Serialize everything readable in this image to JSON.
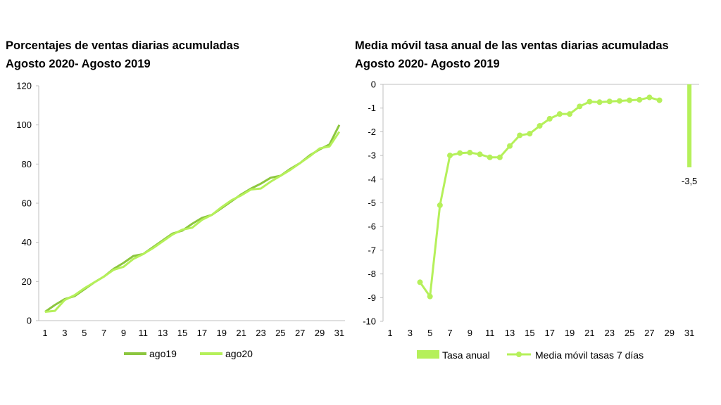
{
  "colors": {
    "ago19": "#8cc63f",
    "ago20": "#b5f05a",
    "tasa": "#b5f05a",
    "media": "#b5f05a",
    "axis": "#bfbfbf"
  },
  "chart_data": [
    {
      "type": "line",
      "title": "Porcentajes  de ventas diarias acumuladas",
      "subtitle": "Agosto 2020- Agosto 2019",
      "xlabel": "",
      "ylabel": "",
      "ylim": [
        0,
        120
      ],
      "yticks": [
        "0",
        "20",
        "40",
        "60",
        "80",
        "100",
        "120"
      ],
      "xticks": [
        "1",
        "3",
        "5",
        "7",
        "9",
        "11",
        "13",
        "15",
        "17",
        "19",
        "21",
        "23",
        "25",
        "27",
        "29",
        "31"
      ],
      "legend": "bottom",
      "x": [
        1,
        2,
        3,
        4,
        5,
        6,
        7,
        8,
        9,
        10,
        11,
        12,
        13,
        14,
        15,
        16,
        17,
        18,
        19,
        20,
        21,
        22,
        23,
        24,
        25,
        26,
        27,
        28,
        29,
        30,
        31
      ],
      "series": [
        {
          "name": "ago19",
          "values": [
            4.5,
            8,
            11,
            12.5,
            16,
            19.5,
            22.5,
            26.5,
            29.5,
            33,
            34,
            37.5,
            41,
            44.5,
            46,
            49.5,
            52.5,
            54,
            57.5,
            61,
            64.5,
            67.5,
            70,
            73,
            74,
            77.5,
            80.5,
            84.5,
            87.5,
            90,
            100
          ]
        },
        {
          "name": "ago20",
          "values": [
            4.5,
            5,
            10.5,
            13,
            16.5,
            19.5,
            22.5,
            26,
            27.5,
            31.5,
            34,
            37,
            40.5,
            44,
            46.5,
            47.5,
            51.5,
            54,
            58,
            61.5,
            64,
            67,
            67.5,
            71,
            74,
            77,
            80.5,
            84,
            88,
            89,
            96.5
          ]
        }
      ]
    },
    {
      "type": "line",
      "title": "Media móvil tasa anual de las ventas diarias acumuladas",
      "subtitle": "Agosto 2020- Agosto 2019",
      "xlabel": "",
      "ylabel": "",
      "ylim": [
        -10,
        0
      ],
      "yticks": [
        "0",
        "-1",
        "-2",
        "-3",
        "-4",
        "-5",
        "-6",
        "-7",
        "-8",
        "-9",
        "-10"
      ],
      "xticks": [
        "1",
        "3",
        "5",
        "7",
        "9",
        "11",
        "13",
        "15",
        "17",
        "19",
        "21",
        "23",
        "25",
        "27",
        "29",
        "31"
      ],
      "legend": "bottom",
      "bar_series": {
        "name": "Tasa anual",
        "x": 31,
        "value": -3.5,
        "label": "-3,5"
      },
      "series": [
        {
          "name": "Media móvil tasas 7 días",
          "x": [
            4,
            5,
            6,
            7,
            8,
            9,
            10,
            11,
            12,
            13,
            14,
            15,
            16,
            17,
            18,
            19,
            20,
            21,
            22,
            23,
            24,
            25,
            26,
            27,
            28
          ],
          "values": [
            -8.35,
            -8.95,
            -5.1,
            -3.0,
            -2.9,
            -2.88,
            -2.95,
            -3.08,
            -3.08,
            -2.6,
            -2.15,
            -2.08,
            -1.75,
            -1.45,
            -1.25,
            -1.25,
            -0.93,
            -0.73,
            -0.75,
            -0.72,
            -0.7,
            -0.67,
            -0.65,
            -0.55,
            -0.67
          ]
        }
      ]
    }
  ]
}
